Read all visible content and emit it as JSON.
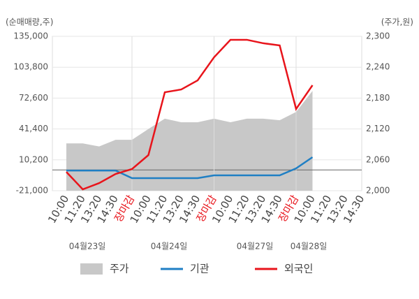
{
  "chart_data": {
    "type": "line",
    "y_axis_label": "(순매매량,주)",
    "y2_axis_label": "(주가,원)",
    "categories": [
      "10:00",
      "11:20",
      "13:20",
      "14:30",
      "장마감",
      "10:00",
      "11:20",
      "13:20",
      "14:30",
      "장마감",
      "10:00",
      "11:20",
      "13:20",
      "14:30",
      "장마감",
      "10:00",
      "11:20",
      "13:20",
      "14:30"
    ],
    "date_labels": [
      "04월23일",
      "04월24일",
      "04월27일",
      "04월28일"
    ],
    "series": [
      {
        "name": "주가",
        "type": "area",
        "axis": "y2",
        "color": "#c8c8c8",
        "values": [
          2092,
          2092,
          2086,
          2099,
          2099,
          2120,
          2140,
          2133,
          2133,
          2140,
          2133,
          2140,
          2140,
          2137,
          2153,
          2194,
          null,
          null,
          null
        ]
      },
      {
        "name": "기관",
        "type": "line",
        "axis": "y",
        "color": "#1f7fc4",
        "values": [
          -600,
          -600,
          -600,
          -600,
          -8300,
          -8300,
          -8300,
          -8300,
          -8300,
          -5500,
          -5500,
          -5500,
          -5500,
          -5500,
          1600,
          12900,
          null,
          null,
          null
        ]
      },
      {
        "name": "외국인",
        "type": "line",
        "axis": "y",
        "color": "#e8141b",
        "values": [
          -2000,
          -19600,
          -13300,
          -4100,
          900,
          15000,
          78500,
          81300,
          90500,
          113800,
          131500,
          131500,
          128000,
          125800,
          61600,
          85600,
          null,
          null,
          null
        ]
      }
    ],
    "ylim": [
      -21000,
      135000
    ],
    "yticks": [
      {
        "value": -21000,
        "label": "-21,000"
      },
      {
        "value": 10200,
        "label": "10,200"
      },
      {
        "value": 41400,
        "label": "41,400"
      },
      {
        "value": 72600,
        "label": "72,600"
      },
      {
        "value": 103800,
        "label": "103,800"
      },
      {
        "value": 135000,
        "label": "135,000"
      }
    ],
    "y2lim": [
      2000,
      2300
    ],
    "y2ticks": [
      {
        "value": 2000,
        "label": "2,000"
      },
      {
        "value": 2060,
        "label": "2,060"
      },
      {
        "value": 2120,
        "label": "2,120"
      },
      {
        "value": 2180,
        "label": "2,180"
      },
      {
        "value": 2240,
        "label": "2,240"
      },
      {
        "value": 2300,
        "label": "2,300"
      }
    ],
    "grid": true
  }
}
